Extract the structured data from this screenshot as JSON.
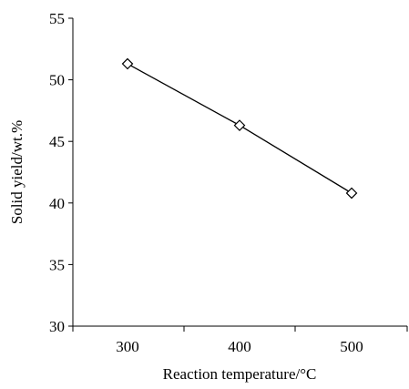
{
  "chart_data": {
    "type": "line",
    "categories": [
      "300",
      "400",
      "500"
    ],
    "series": [
      {
        "values": [
          51.3,
          46.3,
          40.8
        ],
        "marker": "open-diamond",
        "color": "#000000"
      }
    ],
    "xlabel": "Reaction temperature/°C",
    "ylabel": "Solid yield/wt.%",
    "ylim": [
      30,
      55
    ],
    "yticks": [
      30,
      35,
      40,
      45,
      50,
      55
    ],
    "grid": false,
    "legend": "none"
  }
}
